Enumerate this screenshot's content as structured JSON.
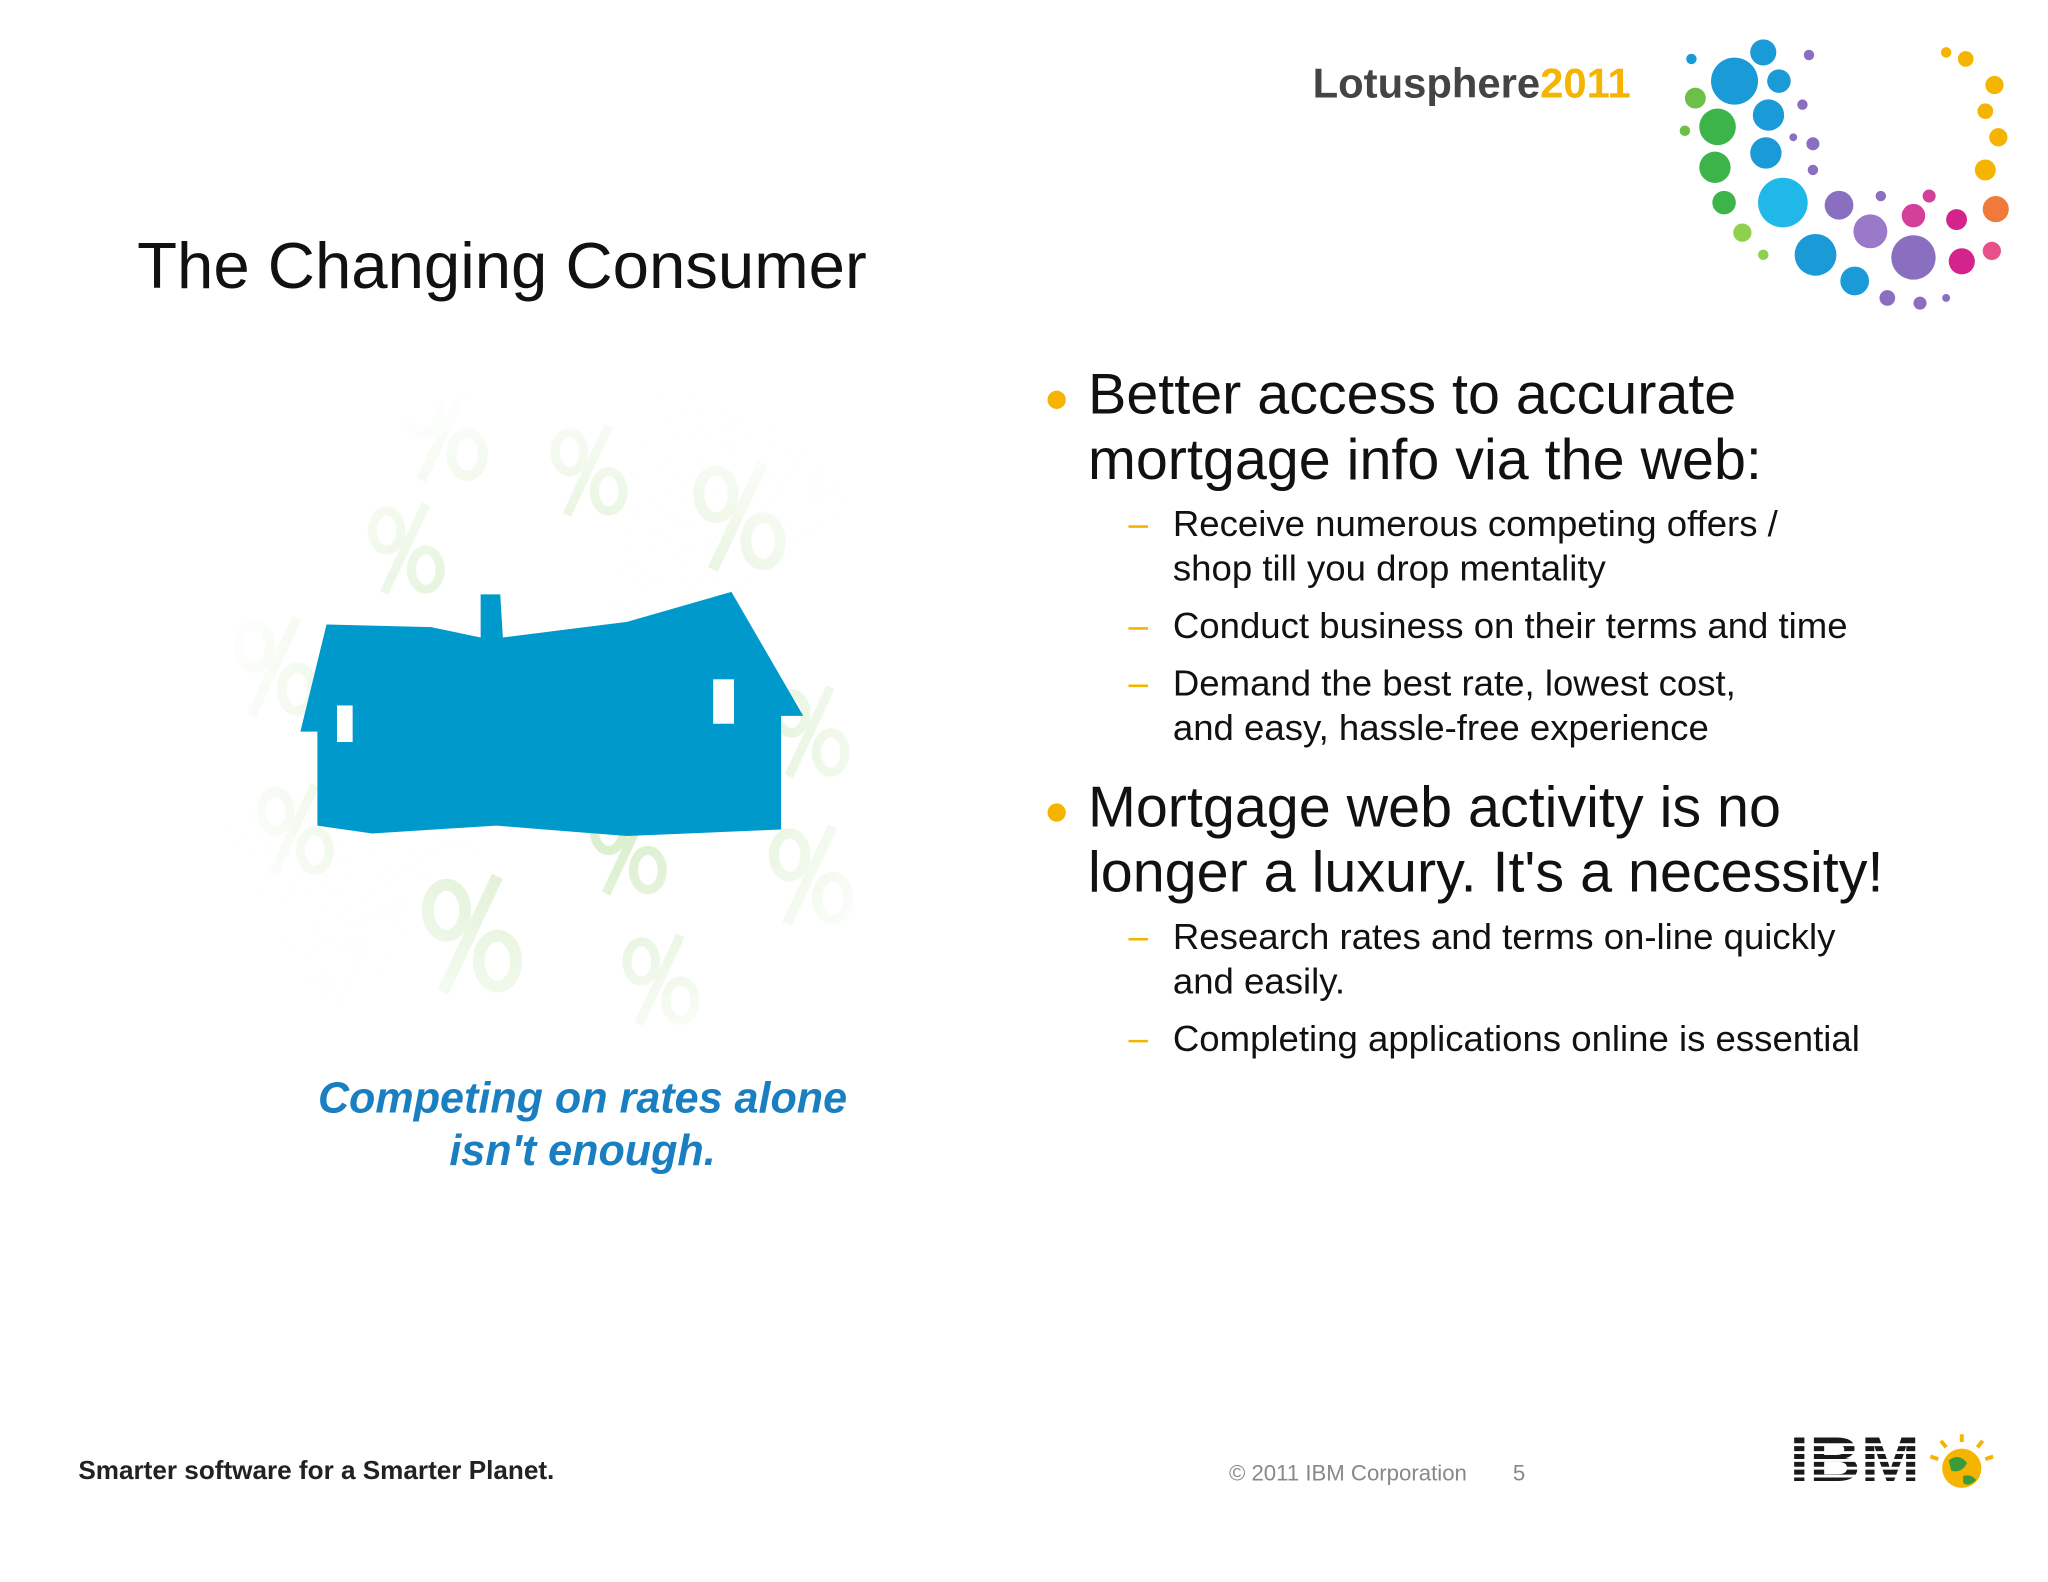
{
  "header": {
    "logo_word": "Lotusphere",
    "logo_year": "2011",
    "title": "The Changing Consumer"
  },
  "bullets": [
    {
      "lines": [
        "Better access to accurate",
        "mortgage info via the web:"
      ],
      "subs": [
        {
          "lines": [
            "Receive numerous competing offers /",
            "shop till you drop mentality"
          ]
        },
        {
          "lines": [
            "Conduct business on their terms and time"
          ]
        },
        {
          "lines": [
            "Demand the best rate, lowest cost,",
            "and easy, hassle-free experience"
          ]
        }
      ]
    },
    {
      "lines": [
        "Mortgage web activity is no",
        "longer a luxury. It's a necessity!"
      ],
      "subs": [
        {
          "lines": [
            "Research rates and terms on-line quickly",
            "and easily."
          ]
        },
        {
          "lines": [
            "Completing applications online is essential"
          ]
        }
      ]
    }
  ],
  "caption": {
    "lines": [
      "Competing on rates alone",
      "isn't enough."
    ]
  },
  "footer": {
    "tagline": "Smarter software for a Smarter Planet.",
    "copyright": "© 2011 IBM Corporation",
    "page": "5",
    "brand": "IBM"
  }
}
